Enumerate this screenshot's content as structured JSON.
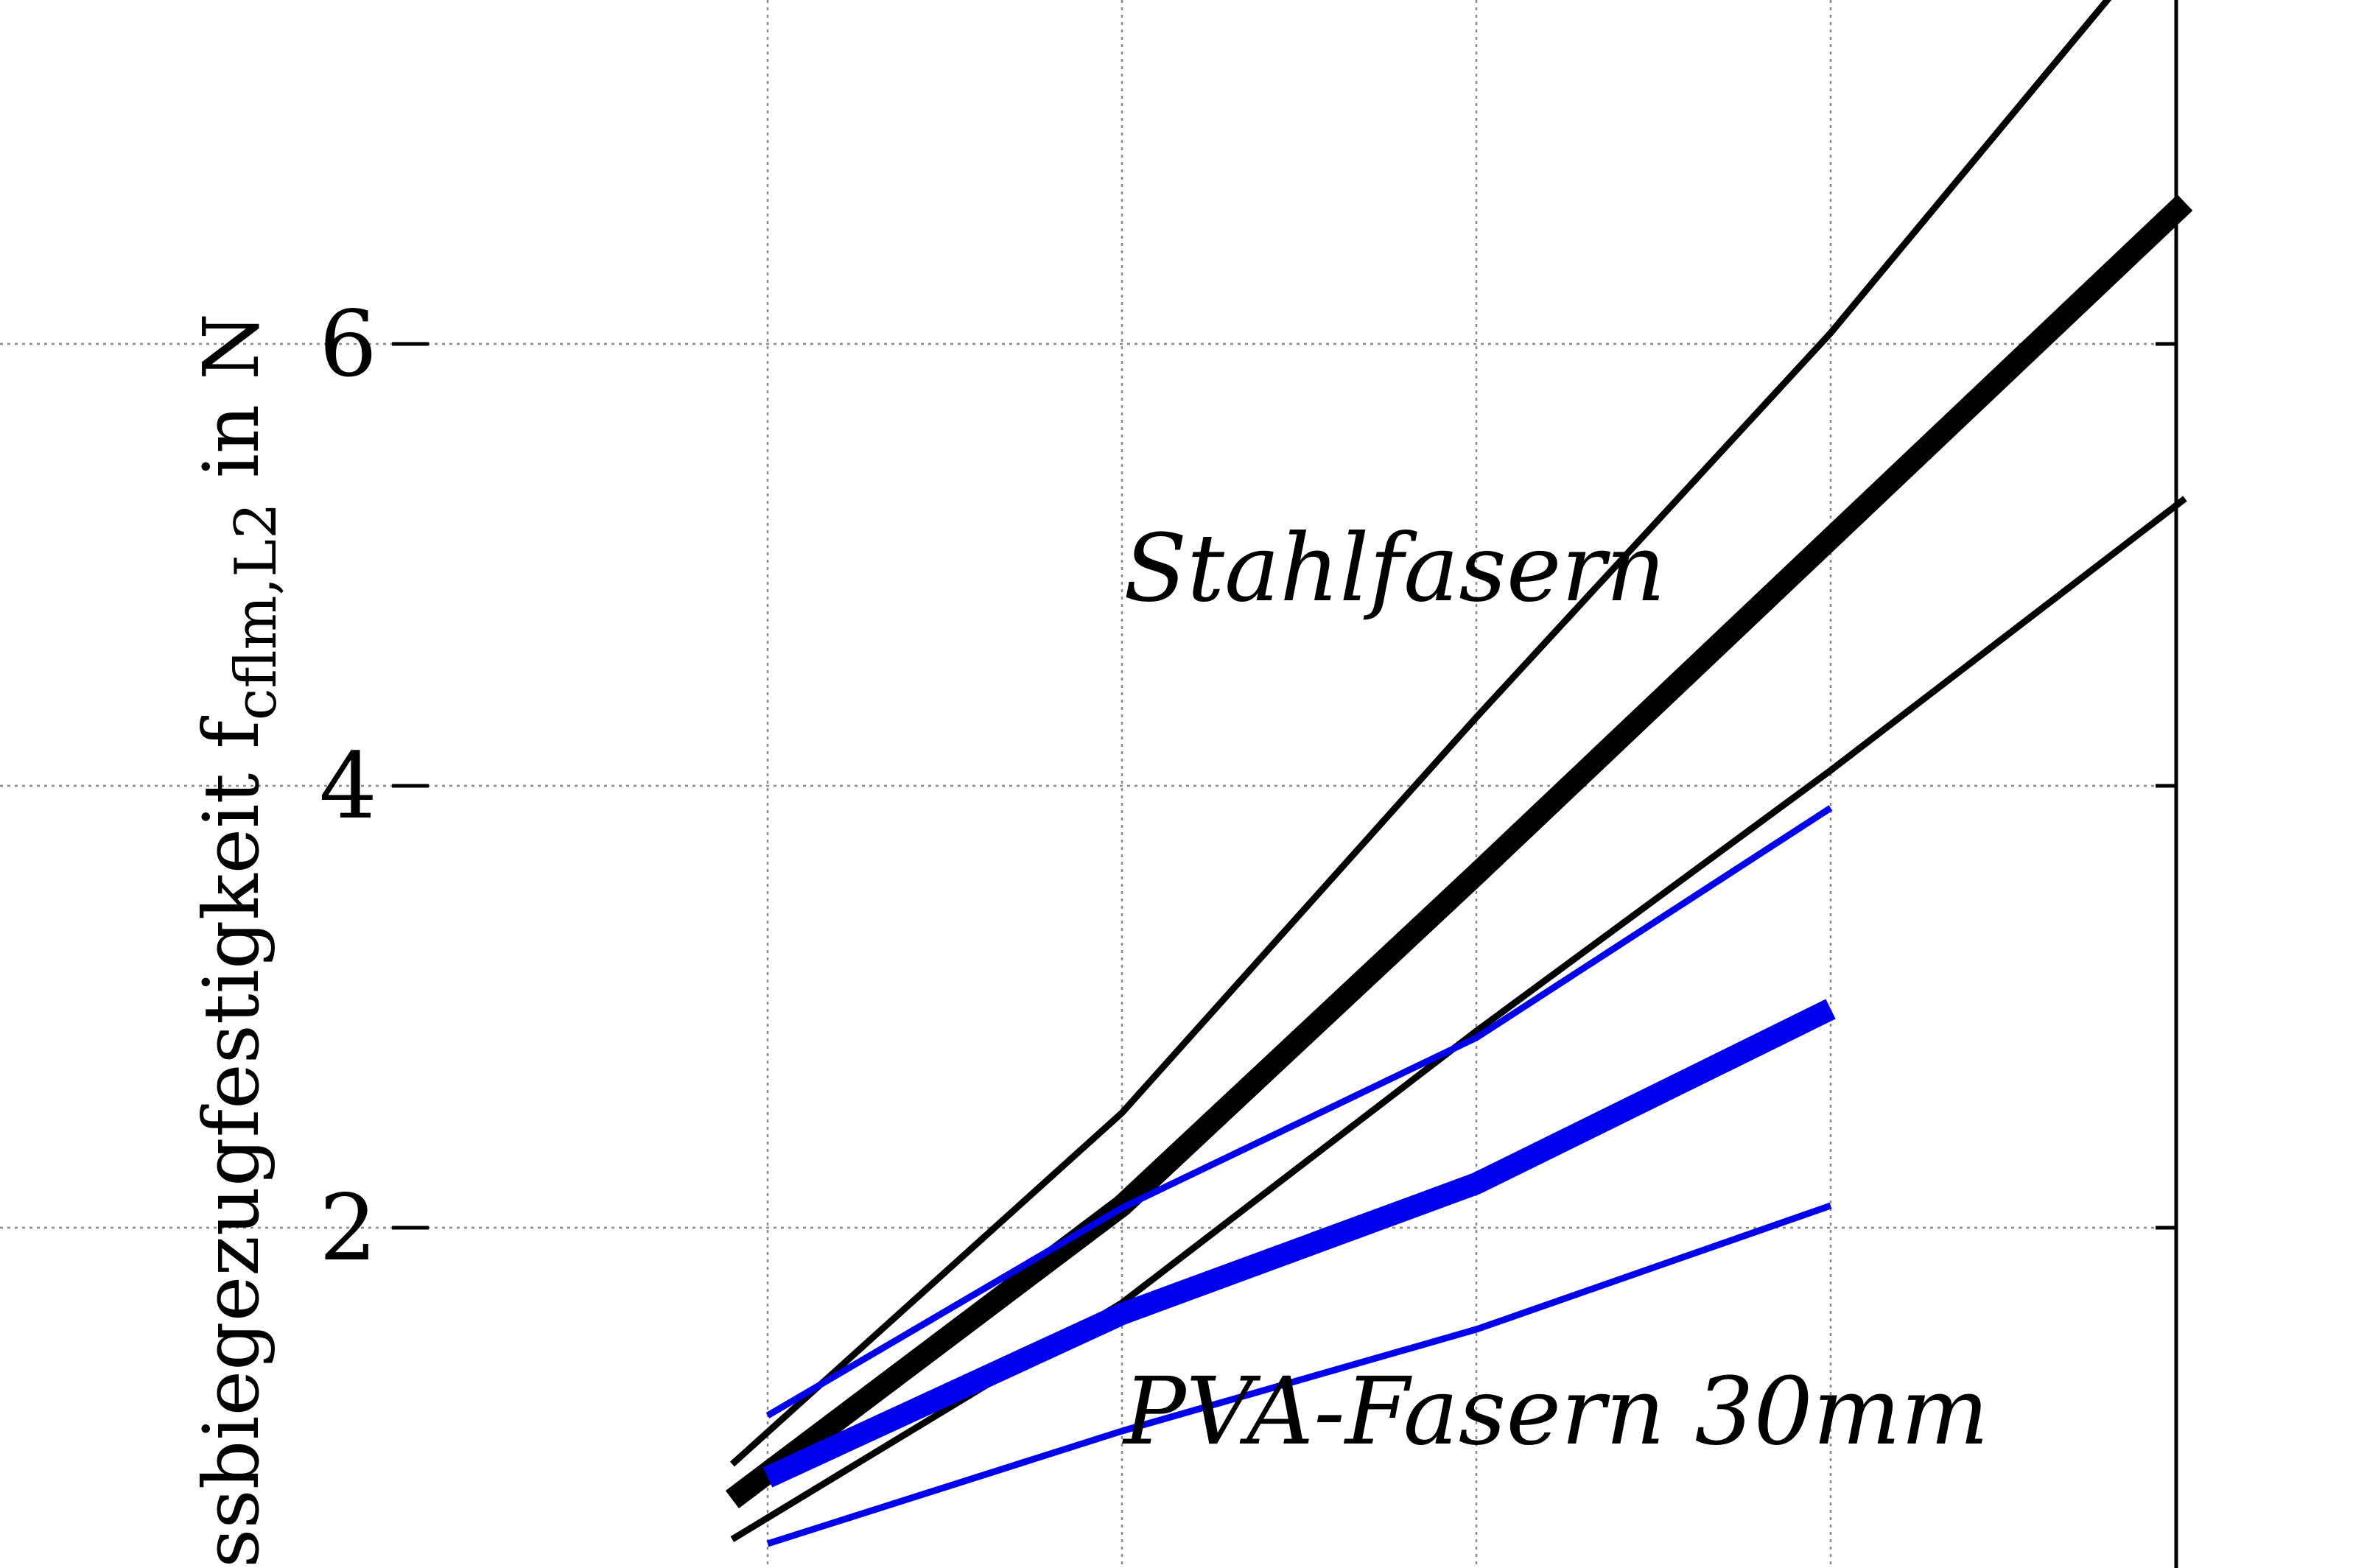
{
  "chart_data": {
    "type": "line",
    "ylabel_main": "ssbiegezugfestigkeit f",
    "ylabel_sub": "cflm,L2",
    "ylabel_tail": " in N",
    "yticks": [
      2,
      4,
      6
    ],
    "ytick_labels": [
      "2",
      "4",
      "6"
    ],
    "x_gridlines": [
      1,
      2,
      3,
      4
    ],
    "xlim": [
      0,
      5
    ],
    "ylim": [
      0.4,
      7.8
    ],
    "grid": true,
    "annotations": [
      {
        "text": "Stahlfasern",
        "group": "stahl"
      },
      {
        "text": "PVA-Fasern 30mm",
        "group": "pva"
      }
    ],
    "series": [
      {
        "group": "stahl",
        "role": "upper",
        "color": "#000000",
        "x": [
          0.9,
          2,
          3,
          4,
          5
        ],
        "y": [
          0.93,
          2.52,
          4.31,
          6.05,
          7.98
        ]
      },
      {
        "group": "stahl",
        "role": "mean",
        "color": "#000000",
        "x": [
          0.9,
          2,
          3,
          4,
          5
        ],
        "y": [
          0.77,
          2.1,
          3.6,
          5.12,
          6.64
        ]
      },
      {
        "group": "stahl",
        "role": "lower",
        "color": "#000000",
        "x": [
          0.9,
          2,
          3,
          4,
          5
        ],
        "y": [
          0.59,
          1.66,
          2.89,
          4.07,
          5.3
        ]
      },
      {
        "group": "pva",
        "role": "upper",
        "color": "#0000ee",
        "x": [
          1,
          2,
          3,
          4
        ],
        "y": [
          1.15,
          2.09,
          2.86,
          3.9
        ]
      },
      {
        "group": "pva",
        "role": "mean",
        "color": "#0000ee",
        "x": [
          1,
          2,
          3,
          4
        ],
        "y": [
          0.87,
          1.61,
          2.2,
          2.99
        ]
      },
      {
        "group": "pva",
        "role": "lower",
        "color": "#0000ee",
        "x": [
          1,
          2,
          3,
          4
        ],
        "y": [
          0.57,
          1.08,
          1.54,
          2.1
        ]
      }
    ]
  }
}
